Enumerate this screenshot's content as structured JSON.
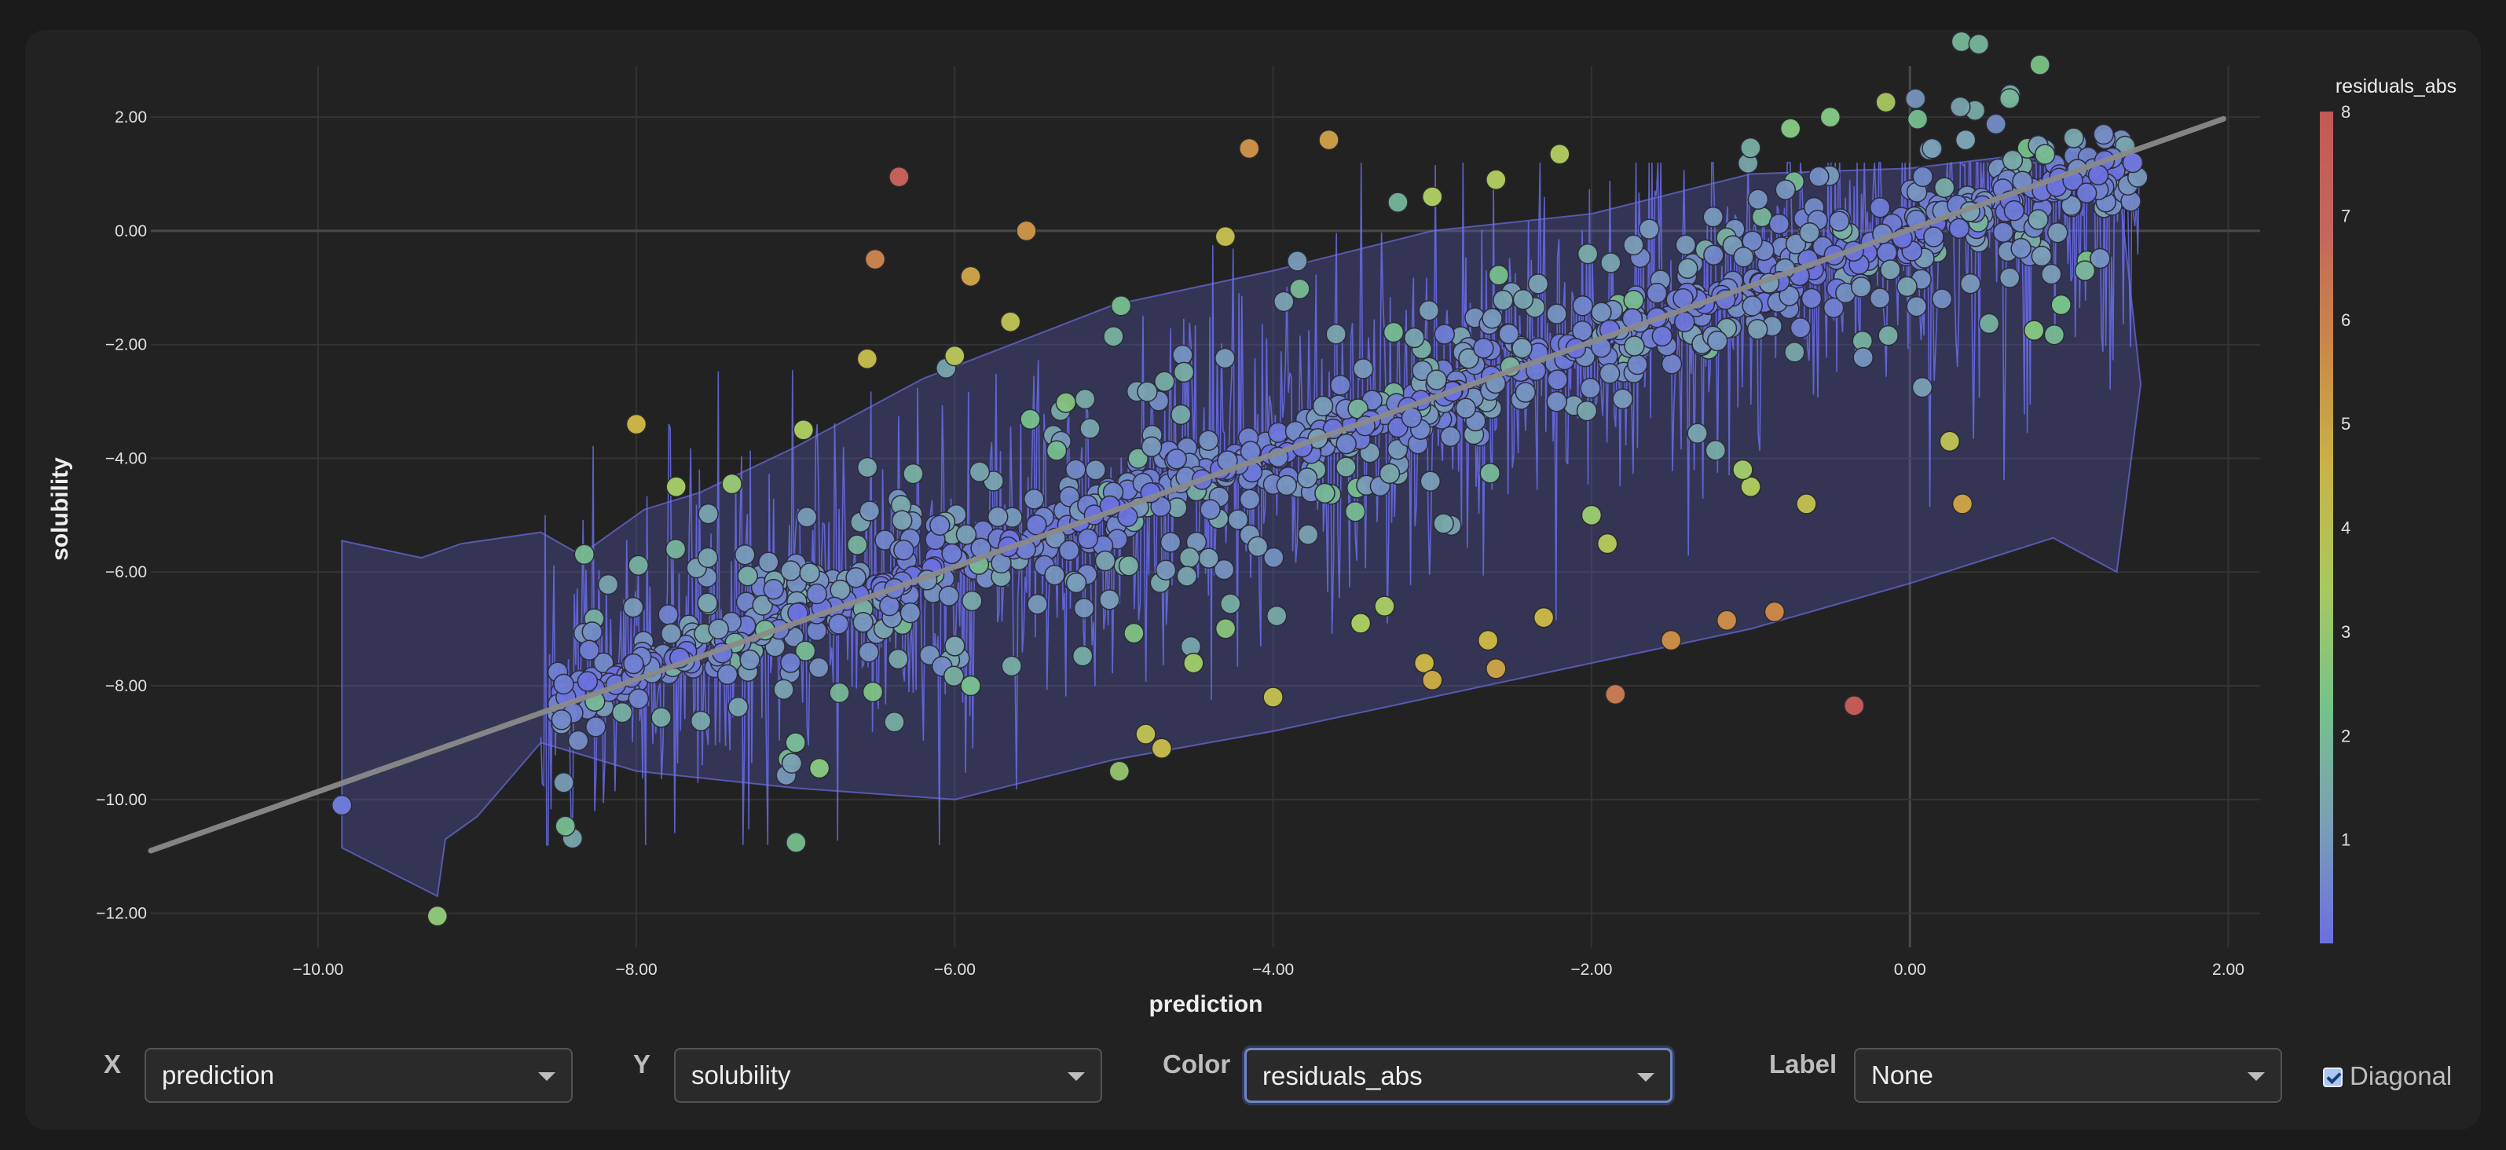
{
  "chart_data": {
    "type": "scatter",
    "xlabel": "prediction",
    "ylabel": "solubility",
    "xlim": [
      -11.05,
      2.2
    ],
    "ylim": [
      -12.6,
      2.9
    ],
    "x_ticks": [
      "−10.00",
      "−8.00",
      "−6.00",
      "−4.00",
      "−2.00",
      "0.00",
      "2.00"
    ],
    "x_tick_values": [
      -10,
      -8,
      -6,
      -4,
      -2,
      0,
      2
    ],
    "y_ticks": [
      "2.00",
      "0.00",
      "−2.00",
      "−4.00",
      "−6.00",
      "−8.00",
      "−10.00",
      "−12.00"
    ],
    "y_tick_values": [
      2,
      0,
      -2,
      -4,
      -6,
      -8,
      -10,
      -12
    ],
    "grid": true,
    "diagonal": {
      "from": [
        -11.05,
        -10.9
      ],
      "to": [
        1.97,
        1.97
      ]
    },
    "colorbar": {
      "title": "residuals_abs",
      "ticks": [
        "1",
        "2",
        "3",
        "4",
        "5",
        "6",
        "7",
        "8"
      ],
      "tick_values": [
        1,
        2,
        3,
        4,
        5,
        6,
        7,
        8
      ],
      "range": [
        0,
        8
      ],
      "colors": [
        "#6b6fe0",
        "#7a9fb6",
        "#76c28a",
        "#a9c860",
        "#c9b346",
        "#c98a48",
        "#c4665c",
        "#c25a55"
      ]
    },
    "highlighted_points": [
      {
        "x": -6.35,
        "y": 0.95,
        "residual": 7.3
      },
      {
        "x": -6.5,
        "y": -0.5,
        "residual": 6.0
      },
      {
        "x": -5.55,
        "y": 0.0,
        "residual": 5.55
      },
      {
        "x": -5.9,
        "y": -0.8,
        "residual": 5.1
      },
      {
        "x": -4.15,
        "y": 1.45,
        "residual": 5.6
      },
      {
        "x": -3.65,
        "y": 1.6,
        "residual": 5.25
      },
      {
        "x": -8.0,
        "y": -3.4,
        "residual": 4.6
      },
      {
        "x": -7.75,
        "y": -4.5,
        "residual": 3.25
      },
      {
        "x": -7.4,
        "y": -4.45,
        "residual": 2.95
      },
      {
        "x": -6.55,
        "y": -2.25,
        "residual": 4.3
      },
      {
        "x": -6.95,
        "y": -3.5,
        "residual": 3.45
      },
      {
        "x": -6.0,
        "y": -2.2,
        "residual": 3.8
      },
      {
        "x": -5.65,
        "y": -1.6,
        "residual": 4.05
      },
      {
        "x": -4.3,
        "y": -0.1,
        "residual": 4.2
      },
      {
        "x": -3.0,
        "y": 0.6,
        "residual": 3.4
      },
      {
        "x": -2.6,
        "y": 0.9,
        "residual": 3.5
      },
      {
        "x": -2.2,
        "y": 1.35,
        "residual": 3.55
      },
      {
        "x": -0.75,
        "y": 1.8,
        "residual": 2.55
      },
      {
        "x": -0.5,
        "y": 2.0,
        "residual": 2.5
      },
      {
        "x": -9.25,
        "y": -12.05,
        "residual": 2.8
      },
      {
        "x": -9.85,
        "y": -10.1,
        "residual": 0.25
      },
      {
        "x": -7.0,
        "y": -9.0,
        "residual": 2.0
      },
      {
        "x": -6.85,
        "y": -9.45,
        "residual": 2.6
      },
      {
        "x": -4.8,
        "y": -8.85,
        "residual": 4.05
      },
      {
        "x": -4.7,
        "y": -9.1,
        "residual": 4.4
      },
      {
        "x": -4.0,
        "y": -8.2,
        "residual": 4.2
      },
      {
        "x": -3.05,
        "y": -7.6,
        "residual": 4.55
      },
      {
        "x": -3.0,
        "y": -7.9,
        "residual": 4.9
      },
      {
        "x": -2.65,
        "y": -7.2,
        "residual": 4.55
      },
      {
        "x": -2.6,
        "y": -7.7,
        "residual": 5.1
      },
      {
        "x": -2.3,
        "y": -6.8,
        "residual": 4.5
      },
      {
        "x": -1.85,
        "y": -8.15,
        "residual": 6.3
      },
      {
        "x": -1.5,
        "y": -7.2,
        "residual": 5.7
      },
      {
        "x": -1.15,
        "y": -6.85,
        "residual": 5.7
      },
      {
        "x": -0.85,
        "y": -6.7,
        "residual": 5.85
      },
      {
        "x": -0.35,
        "y": -8.35,
        "residual": 8.0
      },
      {
        "x": 0.33,
        "y": -4.8,
        "residual": 5.1
      },
      {
        "x": -1.0,
        "y": -4.5,
        "residual": 3.5
      },
      {
        "x": -1.05,
        "y": -4.2,
        "residual": 3.15
      },
      {
        "x": -0.65,
        "y": -4.8,
        "residual": 4.15
      },
      {
        "x": 0.25,
        "y": -3.7,
        "residual": 3.95
      },
      {
        "x": 0.78,
        "y": -1.75,
        "residual": 2.55
      },
      {
        "x": 0.95,
        "y": -1.3,
        "residual": 2.25
      },
      {
        "x": 1.1,
        "y": -0.7,
        "residual": 1.8
      },
      {
        "x": 0.35,
        "y": 1.6,
        "residual": 1.25
      },
      {
        "x": 1.4,
        "y": 1.2,
        "residual": 0.2
      },
      {
        "x": -2.0,
        "y": -5.0,
        "residual": 3.0
      },
      {
        "x": -1.9,
        "y": -5.5,
        "residual": 3.6
      },
      {
        "x": -3.3,
        "y": -6.6,
        "residual": 3.3
      },
      {
        "x": -3.45,
        "y": -6.9,
        "residual": 3.45
      },
      {
        "x": -4.5,
        "y": -7.6,
        "residual": 3.1
      },
      {
        "x": -5.9,
        "y": -8.0,
        "residual": 2.1
      },
      {
        "x": -6.0,
        "y": -7.3,
        "residual": 1.3
      }
    ],
    "bulk_cluster": {
      "description_free": true,
      "center_slope": 0.95,
      "n_points": 1100,
      "x_range": [
        -8.5,
        1.45
      ]
    },
    "band_upper": [
      [
        -9.85,
        -5.45
      ],
      [
        -9.35,
        -5.75
      ],
      [
        -9.1,
        -5.5
      ],
      [
        -8.6,
        -5.3
      ],
      [
        -8.35,
        -5.7
      ],
      [
        -7.95,
        -4.9
      ],
      [
        -7.6,
        -4.6
      ],
      [
        -7.0,
        -3.8
      ],
      [
        -6.2,
        -2.6
      ],
      [
        -5.0,
        -1.3
      ],
      [
        -4.0,
        -0.7
      ],
      [
        -3.0,
        0.0
      ],
      [
        -2.0,
        0.3
      ],
      [
        -1.0,
        1.0
      ],
      [
        0.0,
        1.1
      ],
      [
        0.6,
        1.3
      ],
      [
        1.3,
        1.15
      ],
      [
        1.45,
        -2.7
      ]
    ],
    "band_lower": [
      [
        1.45,
        -2.7
      ],
      [
        1.3,
        -6.0
      ],
      [
        0.9,
        -5.4
      ],
      [
        0.0,
        -6.2
      ],
      [
        -1.0,
        -7.0
      ],
      [
        -2.0,
        -7.6
      ],
      [
        -3.0,
        -8.2
      ],
      [
        -4.0,
        -8.8
      ],
      [
        -5.0,
        -9.3
      ],
      [
        -6.0,
        -10.0
      ],
      [
        -7.0,
        -9.8
      ],
      [
        -8.0,
        -9.5
      ],
      [
        -8.6,
        -9.0
      ],
      [
        -9.0,
        -10.3
      ],
      [
        -9.2,
        -10.7
      ],
      [
        -9.25,
        -11.7
      ],
      [
        -9.85,
        -10.85
      ]
    ]
  },
  "controls": {
    "x_label": "X",
    "x_value": "prediction",
    "y_label": "Y",
    "y_value": "solubility",
    "color_label": "Color",
    "color_value": "residuals_abs",
    "label_label": "Label",
    "label_value": "None",
    "diagonal_label": "Diagonal",
    "diagonal_checked": true
  }
}
